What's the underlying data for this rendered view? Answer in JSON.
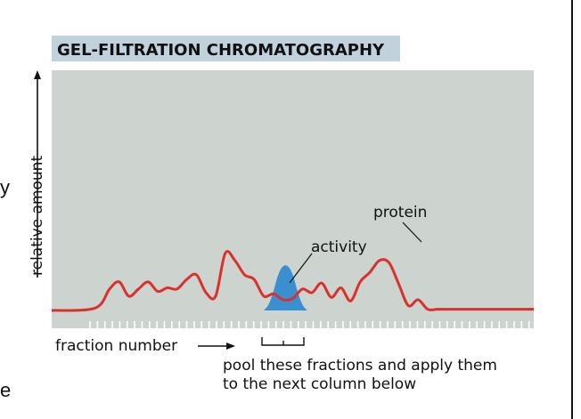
{
  "chart_data": {
    "type": "area",
    "title": "GEL-FILTRATION CHROMATOGRAPHY",
    "xlabel": "fraction number",
    "ylabel": "relative amount",
    "xlim": [
      0,
      100
    ],
    "ylim": [
      0,
      100
    ],
    "grid": false,
    "series": [
      {
        "name": "protein",
        "color": "#d9312b",
        "x": [
          0,
          9,
          12,
          14,
          16,
          18,
          20,
          22,
          24,
          26,
          28,
          30,
          32,
          34,
          36,
          38,
          40,
          42,
          44,
          46,
          48,
          50,
          52,
          54,
          56,
          58,
          60,
          62,
          64,
          66,
          68,
          70,
          72,
          74,
          76,
          78,
          80,
          82,
          84,
          86,
          88,
          90,
          92,
          94,
          100
        ],
        "values": [
          0,
          2,
          18,
          24,
          12,
          18,
          24,
          16,
          19,
          18,
          26,
          30,
          15,
          12,
          48,
          42,
          30,
          26,
          12,
          14,
          9,
          10,
          18,
          15,
          23,
          11,
          19,
          8,
          24,
          32,
          42,
          40,
          22,
          4,
          9,
          1,
          1,
          1,
          1,
          1,
          1,
          1,
          1,
          1,
          1
        ]
      },
      {
        "name": "activity",
        "color": "#3a8fd0",
        "x": [
          44,
          45,
          46,
          47,
          48,
          49,
          50,
          51,
          52,
          53
        ],
        "values": [
          0,
          5,
          16,
          30,
          37,
          37,
          30,
          16,
          5,
          0
        ]
      }
    ],
    "annotations": {
      "protein": "protein",
      "activity": "activity",
      "pool": "pool these fractions and apply them",
      "pool2": "to the next column below"
    },
    "background_color": "#cdd3ce",
    "title_background": "#c2d2dd",
    "tick_color": "#ffffff"
  },
  "edge_text": {
    "top": "y",
    "bottom": "e"
  }
}
